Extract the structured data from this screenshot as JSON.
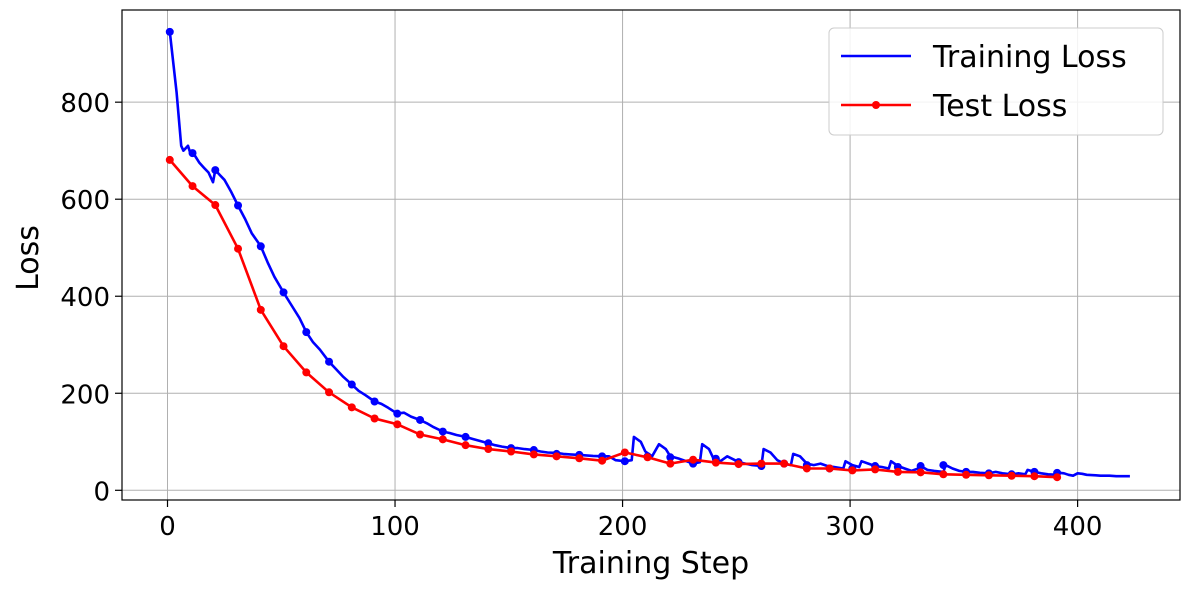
{
  "chart_data": {
    "type": "line",
    "xlabel": "Training Step",
    "ylabel": "Loss",
    "xlim": [
      -20,
      445
    ],
    "ylim": [
      -20,
      990
    ],
    "xticks": [
      0,
      100,
      200,
      300,
      400
    ],
    "yticks": [
      0,
      200,
      400,
      600,
      800
    ],
    "grid": true,
    "legend_position": "top-right",
    "series": [
      {
        "name": "Training Loss",
        "color": "#0000ff",
        "line": [
          [
            1,
            945
          ],
          [
            4,
            820
          ],
          [
            6,
            710
          ],
          [
            7,
            700
          ],
          [
            9,
            710
          ],
          [
            10,
            695
          ],
          [
            12,
            690
          ],
          [
            14,
            675
          ],
          [
            16,
            665
          ],
          [
            18,
            655
          ],
          [
            20,
            635
          ],
          [
            21,
            660
          ],
          [
            23,
            650
          ],
          [
            25,
            640
          ],
          [
            28,
            615
          ],
          [
            31,
            587
          ],
          [
            34,
            560
          ],
          [
            37,
            530
          ],
          [
            41,
            503
          ],
          [
            44,
            470
          ],
          [
            47,
            440
          ],
          [
            51,
            408
          ],
          [
            54,
            385
          ],
          [
            58,
            355
          ],
          [
            61,
            326
          ],
          [
            64,
            305
          ],
          [
            67,
            290
          ],
          [
            71,
            265
          ],
          [
            74,
            250
          ],
          [
            77,
            235
          ],
          [
            81,
            218
          ],
          [
            84,
            205
          ],
          [
            87,
            196
          ],
          [
            91,
            183
          ],
          [
            94,
            178
          ],
          [
            97,
            170
          ],
          [
            101,
            158
          ],
          [
            104,
            160
          ],
          [
            107,
            152
          ],
          [
            111,
            145
          ],
          [
            114,
            138
          ],
          [
            117,
            130
          ],
          [
            121,
            121
          ],
          [
            124,
            118
          ],
          [
            127,
            114
          ],
          [
            131,
            110
          ],
          [
            134,
            106
          ],
          [
            137,
            102
          ],
          [
            141,
            97
          ],
          [
            144,
            93
          ],
          [
            147,
            90
          ],
          [
            151,
            87
          ],
          [
            154,
            87
          ],
          [
            157,
            85
          ],
          [
            161,
            83
          ],
          [
            164,
            80
          ],
          [
            167,
            78
          ],
          [
            171,
            77
          ],
          [
            174,
            75
          ],
          [
            177,
            74
          ],
          [
            181,
            73
          ],
          [
            184,
            72
          ],
          [
            187,
            71
          ],
          [
            191,
            70
          ],
          [
            194,
            70
          ],
          [
            197,
            62
          ],
          [
            201,
            60
          ],
          [
            204,
            62
          ],
          [
            205,
            110
          ],
          [
            208,
            100
          ],
          [
            210,
            80
          ],
          [
            213,
            70
          ],
          [
            216,
            95
          ],
          [
            219,
            85
          ],
          [
            221,
            70
          ],
          [
            225,
            65
          ],
          [
            228,
            60
          ],
          [
            231,
            55
          ],
          [
            234,
            58
          ],
          [
            235,
            95
          ],
          [
            238,
            85
          ],
          [
            240,
            65
          ],
          [
            243,
            60
          ],
          [
            246,
            70
          ],
          [
            249,
            63
          ],
          [
            251,
            58
          ],
          [
            254,
            55
          ],
          [
            257,
            52
          ],
          [
            261,
            50
          ],
          [
            262,
            85
          ],
          [
            265,
            78
          ],
          [
            268,
            62
          ],
          [
            271,
            55
          ],
          [
            274,
            52
          ],
          [
            275,
            75
          ],
          [
            278,
            70
          ],
          [
            281,
            55
          ],
          [
            284,
            52
          ],
          [
            287,
            55
          ],
          [
            290,
            50
          ],
          [
            293,
            48
          ],
          [
            297,
            45
          ],
          [
            298,
            60
          ],
          [
            301,
            52
          ],
          [
            304,
            48
          ],
          [
            305,
            60
          ],
          [
            308,
            55
          ],
          [
            311,
            50
          ],
          [
            314,
            48
          ],
          [
            317,
            45
          ],
          [
            318,
            60
          ],
          [
            321,
            50
          ],
          [
            324,
            45
          ],
          [
            327,
            40
          ],
          [
            330,
            45
          ],
          [
            331,
            50
          ],
          [
            334,
            42
          ],
          [
            337,
            40
          ],
          [
            341,
            38
          ],
          [
            342,
            52
          ],
          [
            345,
            45
          ],
          [
            348,
            40
          ],
          [
            351,
            38
          ],
          [
            354,
            38
          ],
          [
            357,
            36
          ],
          [
            361,
            35
          ],
          [
            364,
            38
          ],
          [
            367,
            35
          ],
          [
            371,
            33
          ],
          [
            374,
            35
          ],
          [
            377,
            33
          ],
          [
            378,
            42
          ],
          [
            381,
            38
          ],
          [
            384,
            35
          ],
          [
            387,
            33
          ],
          [
            391,
            32
          ],
          [
            392,
            36
          ],
          [
            394,
            35
          ],
          [
            396,
            32
          ],
          [
            398,
            30
          ],
          [
            400,
            35
          ],
          [
            402,
            34
          ],
          [
            404,
            32
          ],
          [
            408,
            31
          ],
          [
            410,
            30
          ],
          [
            414,
            30
          ],
          [
            417,
            29
          ],
          [
            420,
            29
          ],
          [
            423,
            29
          ]
        ],
        "markers": [
          [
            1,
            945
          ],
          [
            11,
            695
          ],
          [
            21,
            660
          ],
          [
            31,
            587
          ],
          [
            41,
            503
          ],
          [
            51,
            408
          ],
          [
            61,
            326
          ],
          [
            71,
            265
          ],
          [
            81,
            218
          ],
          [
            91,
            183
          ],
          [
            101,
            158
          ],
          [
            111,
            145
          ],
          [
            121,
            121
          ],
          [
            131,
            110
          ],
          [
            141,
            97
          ],
          [
            151,
            87
          ],
          [
            161,
            83
          ],
          [
            171,
            75
          ],
          [
            181,
            73
          ],
          [
            191,
            70
          ],
          [
            201,
            60
          ],
          [
            211,
            70
          ],
          [
            221,
            68
          ],
          [
            231,
            55
          ],
          [
            241,
            65
          ],
          [
            251,
            58
          ],
          [
            261,
            50
          ],
          [
            271,
            55
          ],
          [
            281,
            52
          ],
          [
            291,
            45
          ],
          [
            301,
            45
          ],
          [
            311,
            50
          ],
          [
            321,
            48
          ],
          [
            331,
            50
          ],
          [
            341,
            52
          ],
          [
            351,
            38
          ],
          [
            361,
            35
          ],
          [
            371,
            33
          ],
          [
            381,
            38
          ],
          [
            391,
            36
          ]
        ]
      },
      {
        "name": "Test Loss",
        "color": "#ff0000",
        "line": [
          [
            1,
            681
          ],
          [
            11,
            627
          ],
          [
            21,
            588
          ],
          [
            31,
            498
          ],
          [
            41,
            372
          ],
          [
            51,
            297
          ],
          [
            61,
            243
          ],
          [
            71,
            202
          ],
          [
            81,
            171
          ],
          [
            91,
            148
          ],
          [
            101,
            136
          ],
          [
            111,
            115
          ],
          [
            121,
            105
          ],
          [
            131,
            93
          ],
          [
            141,
            85
          ],
          [
            151,
            80
          ],
          [
            161,
            74
          ],
          [
            171,
            70
          ],
          [
            181,
            66
          ],
          [
            191,
            61
          ],
          [
            201,
            78
          ],
          [
            211,
            68
          ],
          [
            221,
            55
          ],
          [
            231,
            63
          ],
          [
            241,
            57
          ],
          [
            251,
            54
          ],
          [
            261,
            55
          ],
          [
            271,
            55
          ],
          [
            281,
            45
          ],
          [
            291,
            45
          ],
          [
            301,
            41
          ],
          [
            311,
            43
          ],
          [
            321,
            38
          ],
          [
            331,
            37
          ],
          [
            341,
            33
          ],
          [
            351,
            32
          ],
          [
            361,
            31
          ],
          [
            371,
            30
          ],
          [
            381,
            29
          ],
          [
            391,
            27
          ]
        ],
        "markers": [
          [
            1,
            681
          ],
          [
            11,
            627
          ],
          [
            21,
            588
          ],
          [
            31,
            498
          ],
          [
            41,
            372
          ],
          [
            51,
            297
          ],
          [
            61,
            243
          ],
          [
            71,
            202
          ],
          [
            81,
            171
          ],
          [
            91,
            148
          ],
          [
            101,
            136
          ],
          [
            111,
            115
          ],
          [
            121,
            105
          ],
          [
            131,
            93
          ],
          [
            141,
            85
          ],
          [
            151,
            80
          ],
          [
            161,
            74
          ],
          [
            171,
            70
          ],
          [
            181,
            66
          ],
          [
            191,
            61
          ],
          [
            201,
            78
          ],
          [
            211,
            68
          ],
          [
            221,
            55
          ],
          [
            231,
            63
          ],
          [
            241,
            57
          ],
          [
            251,
            54
          ],
          [
            261,
            55
          ],
          [
            271,
            55
          ],
          [
            281,
            45
          ],
          [
            291,
            45
          ],
          [
            301,
            41
          ],
          [
            311,
            43
          ],
          [
            321,
            38
          ],
          [
            331,
            37
          ],
          [
            341,
            33
          ],
          [
            351,
            32
          ],
          [
            361,
            31
          ],
          [
            371,
            30
          ],
          [
            381,
            29
          ],
          [
            391,
            27
          ]
        ]
      }
    ]
  }
}
